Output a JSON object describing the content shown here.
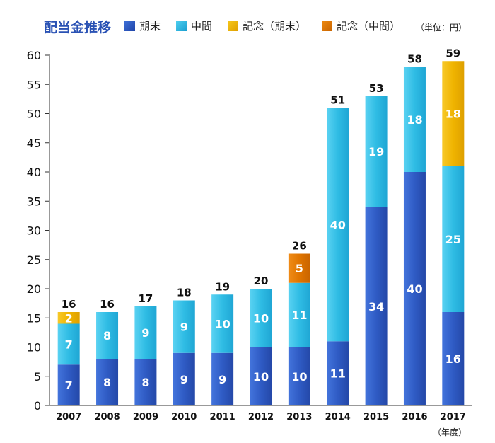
{
  "header": {
    "title": "配当金推移",
    "unit": "（単位：円）"
  },
  "legend": [
    {
      "name": "期末",
      "color": "#2f5bc4"
    },
    {
      "name": "中間",
      "color": "#27b6e0"
    },
    {
      "name": "記念（期末）",
      "color": "#f0b400"
    },
    {
      "name": "記念（中間）",
      "color": "#e07500"
    }
  ],
  "chart_data": {
    "type": "bar",
    "stacked": true,
    "categories": [
      "2007",
      "2008",
      "2009",
      "2010",
      "2011",
      "2012",
      "2013",
      "2014",
      "2015",
      "2016",
      "2017"
    ],
    "series": [
      {
        "name": "期末",
        "color": "#2f5bc4",
        "values": [
          7,
          8,
          8,
          9,
          9,
          10,
          10,
          11,
          34,
          40,
          16
        ]
      },
      {
        "name": "中間",
        "color": "#27b6e0",
        "values": [
          7,
          8,
          9,
          9,
          10,
          10,
          11,
          40,
          19,
          18,
          25
        ]
      },
      {
        "name": "記念（期末）",
        "color": "#f0b400",
        "values": [
          2,
          0,
          0,
          0,
          0,
          0,
          0,
          0,
          0,
          0,
          18
        ]
      },
      {
        "name": "記念（中間）",
        "color": "#e07500",
        "values": [
          0,
          0,
          0,
          0,
          0,
          0,
          5,
          0,
          0,
          0,
          0
        ]
      }
    ],
    "totals": [
      16,
      16,
      17,
      18,
      19,
      20,
      26,
      51,
      53,
      58,
      59
    ],
    "ylim": [
      0,
      60
    ],
    "yticks": [
      0,
      5,
      10,
      15,
      20,
      25,
      30,
      35,
      40,
      45,
      50,
      55,
      60
    ],
    "xunit": "（年度）",
    "grid": false,
    "legend_position": "top"
  }
}
